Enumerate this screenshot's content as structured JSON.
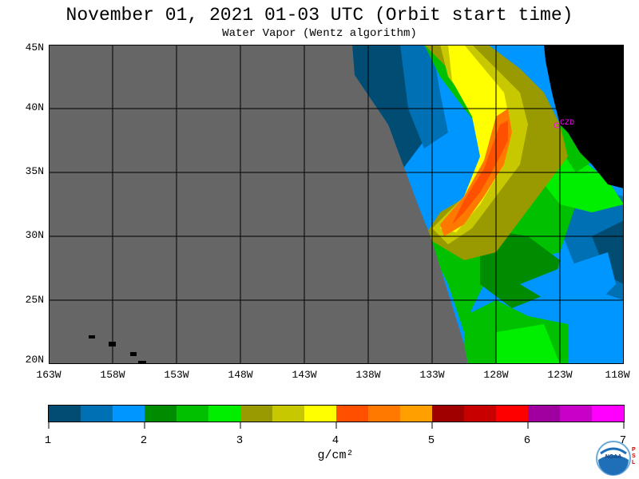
{
  "title": "November 01, 2021  01-03 UTC  (Orbit start time)",
  "subtitle": "Water Vapor (Wentz algorithm)",
  "station_label": "CZD",
  "lat_labels": [
    "45N",
    "40N",
    "35N",
    "30N",
    "25N",
    "20N"
  ],
  "lon_labels": [
    "163W",
    "158W",
    "153W",
    "148W",
    "143W",
    "138W",
    "133W",
    "128W",
    "123W",
    "118W"
  ],
  "colorbar": {
    "tick_labels": [
      "1",
      "2",
      "3",
      "4",
      "5",
      "6",
      "7"
    ],
    "unit": "g/cm²",
    "colors": [
      "#004c73",
      "#0070b4",
      "#0096ff",
      "#008c00",
      "#00c000",
      "#00ee00",
      "#999900",
      "#c8c800",
      "#ffff00",
      "#ff5000",
      "#ff7800",
      "#ffa000",
      "#a00000",
      "#c80000",
      "#ff0000",
      "#a000a0",
      "#c800c8",
      "#ff00ff"
    ]
  },
  "colors": {
    "no_data": "#666666",
    "land": "#000000",
    "grid": "#000000",
    "station": "#ff00ff"
  },
  "logo": {
    "text": "NOAA",
    "side_text": "PSL"
  }
}
